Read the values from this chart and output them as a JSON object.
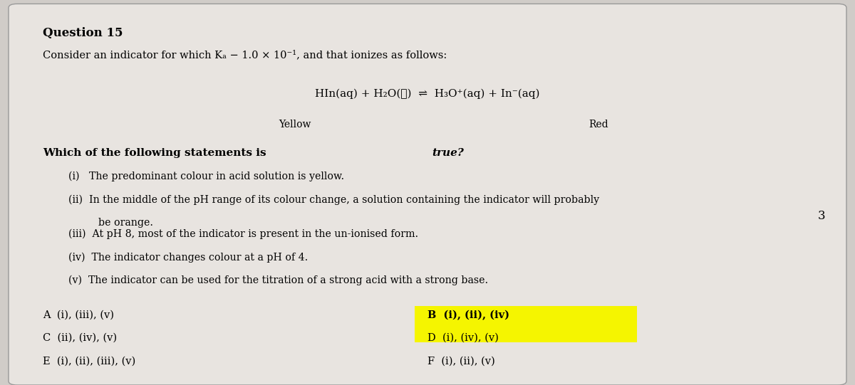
{
  "bg_color": "#d0ccc8",
  "box_color": "#e8e4e0",
  "title": "Question 15",
  "intro": "Consider an indicator for which Kₐ − 1.0 × 10⁻¹, and that ionizes as follows:",
  "equation": "HIn(aq) + H₂O(ℓ) ⇌ H₃O⁺(aq) + In⁻(aq)",
  "yellow_label": "Yellow",
  "red_label": "Red",
  "bold_question": "Which of the following statements is ",
  "bold_true": "true?",
  "statements": [
    "(i)  The predominant colour in acid solution is yellow.",
    "(ii)  In the middle of the pH range of its colour change, a solution containing the indicator will probably\n        be orange.",
    "(iii)  At pH 8, most of the indicator is present in the un-ionised form.",
    "(iv)  The indicator changes colour at a pH of 4.",
    "(v)  The indicator can be used for the titration of a strong acid with a strong base."
  ],
  "answer_A": "A  (i), (iii), (v)",
  "answer_B": "B  (i), (ii), (iv)",
  "answer_C": "C  (ii), (iv), (v)",
  "answer_D": "D  (i), (iv), (v)",
  "answer_E": "E  (i), (ii), (iii), (v)",
  "answer_F": "F  (i), (ii), (v)",
  "highlight_color": "#f5f500",
  "mark": "3"
}
